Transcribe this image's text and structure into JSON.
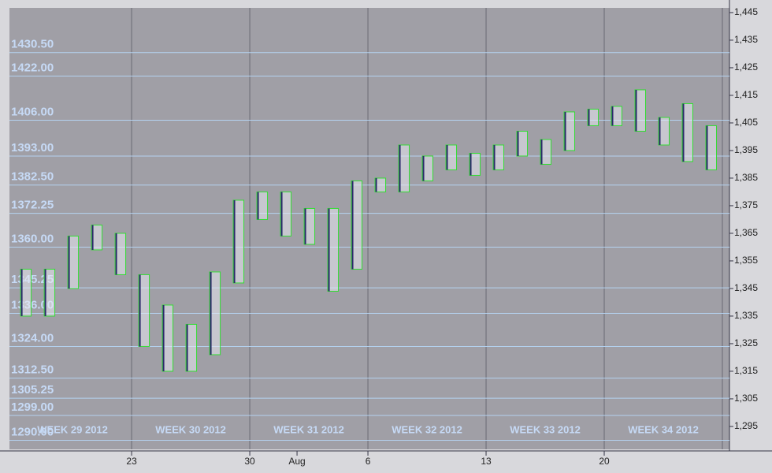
{
  "chart_data": {
    "type": "range",
    "x": [
      0,
      1,
      2,
      3,
      4,
      5,
      6,
      7,
      8,
      9,
      10,
      11,
      12,
      13,
      14,
      15,
      16,
      17,
      18,
      19,
      20,
      21,
      22,
      23,
      24,
      25,
      26,
      27,
      28,
      29
    ],
    "high": [
      1352,
      1352,
      1364,
      1368,
      1365,
      1350,
      1339,
      1332,
      1351,
      1377,
      1380,
      1380,
      1374,
      1374,
      1384,
      1385,
      1397,
      1393,
      1397,
      1394,
      1397,
      1402,
      1399,
      1409,
      1410,
      1411,
      1417,
      1407,
      1412,
      1404
    ],
    "low": [
      1335,
      1335,
      1345,
      1359,
      1350,
      1324,
      1315,
      1315,
      1321,
      1347,
      1370,
      1364,
      1361,
      1344,
      1352,
      1380,
      1380,
      1384,
      1388,
      1386,
      1388,
      1393,
      1390,
      1395,
      1404,
      1404,
      1402,
      1397,
      1391,
      1388
    ],
    "color": "#e8e8f0",
    "box_color": "#33dd33",
    "xlim": [
      -0.17,
      30.3
    ],
    "xticks": [
      {
        "value": 5,
        "label": "23"
      },
      {
        "value": 10,
        "label": "30"
      },
      {
        "value": 12,
        "label": "Aug"
      },
      {
        "value": 15,
        "label": "6"
      },
      {
        "value": 20,
        "label": "13"
      },
      {
        "value": 25,
        "label": "20"
      }
    ],
    "ylim": [
      1286.7,
      1446.7
    ],
    "yticks": [
      {
        "value": 1445,
        "label": "1,445"
      },
      {
        "value": 1435,
        "label": "1,435"
      },
      {
        "value": 1425,
        "label": "1,425"
      },
      {
        "value": 1415,
        "label": "1,415"
      },
      {
        "value": 1405,
        "label": "1,405"
      },
      {
        "value": 1395,
        "label": "1,395"
      },
      {
        "value": 1385,
        "label": "1,385"
      },
      {
        "value": 1375,
        "label": "1,375"
      },
      {
        "value": 1365,
        "label": "1,365"
      },
      {
        "value": 1355,
        "label": "1,355"
      },
      {
        "value": 1345,
        "label": "1,345"
      },
      {
        "value": 1335,
        "label": "1,335"
      },
      {
        "value": 1325,
        "label": "1,325"
      },
      {
        "value": 1315,
        "label": "1,315"
      },
      {
        "value": 1305,
        "label": "1,305"
      },
      {
        "value": 1295,
        "label": "1,295"
      }
    ],
    "levels": [
      {
        "value": 1430.5,
        "label": "1430.50"
      },
      {
        "value": 1422,
        "label": "1422.00"
      },
      {
        "value": 1406,
        "label": "1406.00"
      },
      {
        "value": 1393,
        "label": "1393.00"
      },
      {
        "value": 1382.5,
        "label": "1382.50"
      },
      {
        "value": 1372.25,
        "label": "1372.25"
      },
      {
        "value": 1360,
        "label": "1360.00"
      },
      {
        "value": 1345.25,
        "label": "1345.25"
      },
      {
        "value": 1336,
        "label": "1336.00"
      },
      {
        "value": 1324,
        "label": "1324.00"
      },
      {
        "value": 1312.5,
        "label": "1312.50"
      },
      {
        "value": 1305.25,
        "label": "1305.25"
      },
      {
        "value": 1299,
        "label": "1299.00"
      },
      {
        "value": 1290,
        "label": "1290.00"
      }
    ],
    "weeks": [
      "WEEK 29 2012",
      "WEEK 30 2012",
      "WEEK 31 2012",
      "WEEK 32 2012",
      "WEEK 33 2012",
      "WEEK 34 2012"
    ]
  }
}
